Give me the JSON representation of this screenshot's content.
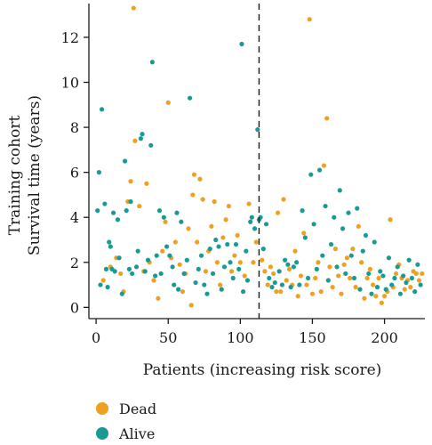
{
  "chart_data": {
    "type": "scatter",
    "title": "",
    "xlabel": "Patients (increasing risk score)",
    "ylabel_lines": [
      "Training cohort",
      "Survival time (years)"
    ],
    "xlim": [
      -5,
      228
    ],
    "ylim": [
      -0.5,
      13.5
    ],
    "xticks": [
      0,
      50,
      100,
      150,
      200
    ],
    "yticks": [
      0,
      2,
      4,
      6,
      8,
      10,
      12
    ],
    "grid": false,
    "cutoff_x": 113,
    "legend_position": "bottom-left",
    "colors": {
      "Dead": "#f0a020",
      "Alive": "#1a9a94"
    },
    "legend": [
      {
        "name": "Dead",
        "color": "#f0a020"
      },
      {
        "name": "Alive",
        "color": "#1a9a94"
      }
    ],
    "series": [
      {
        "name": "Dead",
        "color": "#f0a020",
        "points": [
          [
            5,
            1.2
          ],
          [
            10,
            1.8
          ],
          [
            14,
            2.2
          ],
          [
            17,
            1.5
          ],
          [
            19,
            0.7
          ],
          [
            22,
            4.7
          ],
          [
            24,
            5.6
          ],
          [
            26,
            13.3
          ],
          [
            27,
            7.4
          ],
          [
            30,
            4.5
          ],
          [
            33,
            1.6
          ],
          [
            35,
            5.5
          ],
          [
            37,
            2.0
          ],
          [
            40,
            1.2
          ],
          [
            43,
            0.4
          ],
          [
            46,
            2.5
          ],
          [
            48,
            3.8
          ],
          [
            50,
            9.1
          ],
          [
            52,
            2.2
          ],
          [
            55,
            2.9
          ],
          [
            58,
            1.9
          ],
          [
            60,
            0.7
          ],
          [
            62,
            1.5
          ],
          [
            64,
            3.5
          ],
          [
            66,
            0.1
          ],
          [
            67,
            5.0
          ],
          [
            68,
            5.9
          ],
          [
            70,
            2.9
          ],
          [
            72,
            5.7
          ],
          [
            74,
            4.8
          ],
          [
            76,
            1.6
          ],
          [
            78,
            2.5
          ],
          [
            80,
            3.6
          ],
          [
            82,
            4.7
          ],
          [
            84,
            2.0
          ],
          [
            86,
            1.0
          ],
          [
            88,
            3.1
          ],
          [
            90,
            3.9
          ],
          [
            92,
            4.5
          ],
          [
            94,
            1.6
          ],
          [
            96,
            2.3
          ],
          [
            98,
            3.2
          ],
          [
            100,
            2.0
          ],
          [
            103,
            1.4
          ],
          [
            106,
            4.6
          ],
          [
            109,
            2.0
          ],
          [
            111,
            2.9
          ],
          [
            115,
            2.1
          ],
          [
            117,
            1.6
          ],
          [
            119,
            1.0
          ],
          [
            121,
            1.8
          ],
          [
            123,
            1.5
          ],
          [
            125,
            0.7
          ],
          [
            126,
            4.2
          ],
          [
            128,
            0.7
          ],
          [
            130,
            4.8
          ],
          [
            132,
            1.2
          ],
          [
            134,
            1.7
          ],
          [
            136,
            1.0
          ],
          [
            138,
            2.5
          ],
          [
            140,
            0.5
          ],
          [
            142,
            1.4
          ],
          [
            144,
            3.3
          ],
          [
            146,
            1.0
          ],
          [
            148,
            12.8
          ],
          [
            150,
            0.6
          ],
          [
            152,
            1.3
          ],
          [
            154,
            2.0
          ],
          [
            156,
            0.7
          ],
          [
            158,
            6.3
          ],
          [
            160,
            8.4
          ],
          [
            162,
            1.8
          ],
          [
            164,
            0.9
          ],
          [
            166,
            2.6
          ],
          [
            168,
            1.4
          ],
          [
            170,
            0.6
          ],
          [
            172,
            1.9
          ],
          [
            174,
            2.2
          ],
          [
            176,
            1.3
          ],
          [
            178,
            2.6
          ],
          [
            180,
            0.9
          ],
          [
            182,
            3.6
          ],
          [
            184,
            2.0
          ],
          [
            186,
            0.4
          ],
          [
            188,
            1.3
          ],
          [
            190,
            1.7
          ],
          [
            192,
            1.0
          ],
          [
            194,
            0.5
          ],
          [
            196,
            1.3
          ],
          [
            198,
            0.2
          ],
          [
            200,
            0.5
          ],
          [
            202,
            0.7
          ],
          [
            204,
            3.9
          ],
          [
            206,
            0.9
          ],
          [
            208,
            1.5
          ],
          [
            210,
            1.9
          ],
          [
            212,
            1.3
          ],
          [
            214,
            0.8
          ],
          [
            216,
            1.2
          ],
          [
            218,
            0.9
          ],
          [
            220,
            1.6
          ],
          [
            222,
            1.5
          ],
          [
            224,
            1.2
          ],
          [
            226,
            1.5
          ]
        ]
      },
      {
        "name": "Alive",
        "color": "#1a9a94",
        "points": [
          [
            1,
            4.3
          ],
          [
            2,
            6.0
          ],
          [
            3,
            1.0
          ],
          [
            4,
            8.8
          ],
          [
            6,
            4.6
          ],
          [
            7,
            1.7
          ],
          [
            8,
            0.9
          ],
          [
            9,
            2.9
          ],
          [
            10,
            2.7
          ],
          [
            11,
            1.7
          ],
          [
            12,
            4.2
          ],
          [
            13,
            1.6
          ],
          [
            15,
            3.9
          ],
          [
            16,
            2.2
          ],
          [
            18,
            0.6
          ],
          [
            20,
            6.5
          ],
          [
            21,
            4.3
          ],
          [
            23,
            1.7
          ],
          [
            24,
            4.7
          ],
          [
            25,
            1.5
          ],
          [
            28,
            1.8
          ],
          [
            29,
            2.5
          ],
          [
            31,
            7.5
          ],
          [
            32,
            7.7
          ],
          [
            34,
            1.6
          ],
          [
            36,
            2.1
          ],
          [
            38,
            7.2
          ],
          [
            39,
            10.9
          ],
          [
            41,
            1.4
          ],
          [
            42,
            2.3
          ],
          [
            44,
            4.3
          ],
          [
            45,
            1.5
          ],
          [
            47,
            4.0
          ],
          [
            49,
            2.7
          ],
          [
            51,
            2.3
          ],
          [
            53,
            1.8
          ],
          [
            54,
            1.0
          ],
          [
            56,
            4.2
          ],
          [
            57,
            0.8
          ],
          [
            59,
            3.8
          ],
          [
            61,
            1.5
          ],
          [
            63,
            2.1
          ],
          [
            65,
            9.3
          ],
          [
            69,
            1.1
          ],
          [
            71,
            1.7
          ],
          [
            73,
            2.3
          ],
          [
            75,
            1.0
          ],
          [
            77,
            0.6
          ],
          [
            79,
            2.6
          ],
          [
            81,
            1.5
          ],
          [
            83,
            3.0
          ],
          [
            85,
            2.7
          ],
          [
            87,
            0.8
          ],
          [
            89,
            1.8
          ],
          [
            91,
            2.8
          ],
          [
            93,
            2.0
          ],
          [
            95,
            1.3
          ],
          [
            97,
            2.8
          ],
          [
            99,
            1.7
          ],
          [
            101,
            11.7
          ],
          [
            102,
            0.7
          ],
          [
            104,
            2.5
          ],
          [
            105,
            1.2
          ],
          [
            107,
            3.8
          ],
          [
            108,
            4.0
          ],
          [
            110,
            3.5
          ],
          [
            112,
            7.9
          ],
          [
            113,
            3.9
          ],
          [
            114,
            4.0
          ],
          [
            116,
            2.6
          ],
          [
            118,
            3.7
          ],
          [
            120,
            1.3
          ],
          [
            122,
            0.9
          ],
          [
            124,
            1.1
          ],
          [
            127,
            1.6
          ],
          [
            129,
            1.0
          ],
          [
            131,
            2.1
          ],
          [
            133,
            1.9
          ],
          [
            135,
            0.9
          ],
          [
            137,
            1.8
          ],
          [
            139,
            2.0
          ],
          [
            141,
            1.0
          ],
          [
            143,
            4.3
          ],
          [
            145,
            3.1
          ],
          [
            147,
            1.3
          ],
          [
            149,
            5.9
          ],
          [
            151,
            3.7
          ],
          [
            153,
            1.7
          ],
          [
            155,
            6.1
          ],
          [
            157,
            2.3
          ],
          [
            159,
            4.5
          ],
          [
            161,
            1.2
          ],
          [
            163,
            2.8
          ],
          [
            165,
            4.0
          ],
          [
            167,
            1.8
          ],
          [
            169,
            5.2
          ],
          [
            171,
            3.5
          ],
          [
            173,
            1.5
          ],
          [
            175,
            4.2
          ],
          [
            177,
            2.3
          ],
          [
            179,
            1.3
          ],
          [
            181,
            4.4
          ],
          [
            183,
            0.8
          ],
          [
            185,
            2.5
          ],
          [
            187,
            3.2
          ],
          [
            189,
            1.5
          ],
          [
            191,
            0.6
          ],
          [
            193,
            2.9
          ],
          [
            195,
            0.9
          ],
          [
            197,
            1.6
          ],
          [
            199,
            1.4
          ],
          [
            201,
            0.8
          ],
          [
            203,
            2.2
          ],
          [
            205,
            1.0
          ],
          [
            207,
            1.3
          ],
          [
            209,
            1.8
          ],
          [
            211,
            0.6
          ],
          [
            213,
            1.4
          ],
          [
            215,
            1.1
          ],
          [
            217,
            2.1
          ],
          [
            219,
            1.3
          ],
          [
            221,
            0.7
          ],
          [
            223,
            1.9
          ],
          [
            225,
            1.0
          ]
        ]
      }
    ]
  }
}
